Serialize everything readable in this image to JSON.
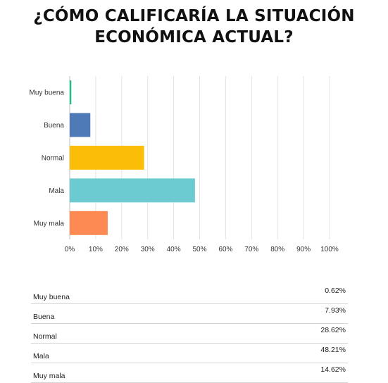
{
  "chart_data": {
    "type": "bar",
    "orientation": "horizontal",
    "title_lines": [
      "¿CÓMO CALIFICARÍA LA SITUACIÓN",
      "ECONÓMICA ACTUAL?"
    ],
    "categories": [
      "Muy buena",
      "Buena",
      "Normal",
      "Mala",
      "Muy mala"
    ],
    "values": [
      0.62,
      7.93,
      28.62,
      48.21,
      14.62
    ],
    "value_labels": [
      "0.62%",
      "7.93%",
      "28.62%",
      "48.21%",
      "14.62%"
    ],
    "colors": [
      "#1fbc8c",
      "#4f7ab8",
      "#fbbd08",
      "#6ccbd0",
      "#fd8a52"
    ],
    "xlim": [
      0,
      100
    ],
    "xticks": [
      "0%",
      "10%",
      "20%",
      "30%",
      "40%",
      "50%",
      "60%",
      "70%",
      "80%",
      "90%",
      "100%"
    ],
    "grid": true,
    "legend": "none"
  }
}
